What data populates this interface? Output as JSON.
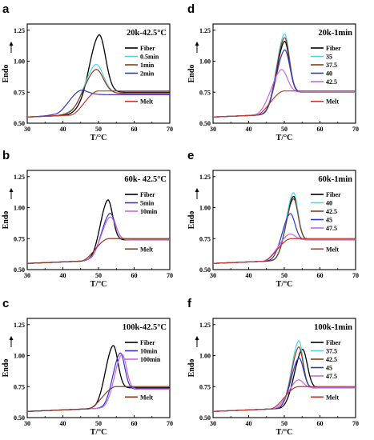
{
  "chart_data": [
    {
      "panel": "a",
      "type": "line",
      "title": "20k-42.5°C",
      "xlabel": "T/°C",
      "ylabel": "Endo",
      "xlim": [
        30,
        70
      ],
      "ylim": [
        0.5,
        1.3
      ],
      "xticks": [
        "30",
        "40",
        "50",
        "60",
        "70"
      ],
      "yticks": [
        "0.50",
        "0.75",
        "1.00",
        "1.25"
      ],
      "grid": false,
      "legend_position": "top-right",
      "series": [
        {
          "name": "Fiber",
          "color": "#000000",
          "baseline": [
            0.55,
            0.75
          ],
          "peak": {
            "x": 50.0,
            "y": 1.21
          },
          "width": 2.2,
          "onset": 45.0
        },
        {
          "name": "0.5min",
          "color": "#4fd3e8",
          "baseline": [
            0.55,
            0.74
          ],
          "peak": {
            "x": 49.0,
            "y": 0.97
          },
          "width": 2.6,
          "onset": 43.0
        },
        {
          "name": "1min",
          "color": "#8b3a1f",
          "baseline": [
            0.55,
            0.74
          ],
          "peak": {
            "x": 49.0,
            "y": 0.93
          },
          "width": 2.6,
          "onset": 42.0
        },
        {
          "name": "2min",
          "color": "#3333cc",
          "baseline": [
            0.55,
            0.73
          ],
          "peak": {
            "x": 44.0,
            "y": 0.75
          },
          "width": 3.0,
          "onset": 38.0
        },
        {
          "name": "Melt",
          "color": "#c0392b",
          "baseline": [
            0.55,
            0.76
          ],
          "peak": null,
          "onset": 42.0
        }
      ]
    },
    {
      "panel": "b",
      "type": "line",
      "title": "60k- 42.5°C",
      "xlabel": "T/°C",
      "ylabel": "Endo",
      "xlim": [
        30,
        70
      ],
      "ylim": [
        0.5,
        1.3
      ],
      "xticks": [
        "30",
        "40",
        "50",
        "60",
        "70"
      ],
      "yticks": [
        "0.50",
        "0.75",
        "1.00",
        "1.25"
      ],
      "grid": false,
      "legend_position": "top-right",
      "series": [
        {
          "name": "Fiber",
          "color": "#000000",
          "baseline": [
            0.55,
            0.74
          ],
          "peak": {
            "x": 52.5,
            "y": 1.06
          },
          "width": 1.6,
          "onset": 48.0
        },
        {
          "name": "5min",
          "color": "#3333cc",
          "baseline": [
            0.55,
            0.74
          ],
          "peak": {
            "x": 53.0,
            "y": 0.95
          },
          "width": 1.8,
          "onset": 48.0
        },
        {
          "name": "10min",
          "color": "#cc66e0",
          "baseline": [
            0.55,
            0.74
          ],
          "peak": {
            "x": 53.0,
            "y": 0.92
          },
          "width": 1.9,
          "onset": 48.0
        },
        {
          "name": "Melt",
          "color": "#8b3a1f",
          "baseline": [
            0.55,
            0.75
          ],
          "peak": null,
          "onset": 45.0
        }
      ]
    },
    {
      "panel": "c",
      "type": "line",
      "title": "100k-42.5°C",
      "xlabel": "T/°C",
      "ylabel": "Endo",
      "xlim": [
        30,
        70
      ],
      "ylim": [
        0.5,
        1.3
      ],
      "xticks": [
        "30",
        "40",
        "50",
        "60",
        "70"
      ],
      "yticks": [
        "0.50",
        "0.75",
        "1.00",
        "1.25"
      ],
      "grid": false,
      "legend_position": "top-right",
      "series": [
        {
          "name": "Fiber",
          "color": "#000000",
          "baseline": [
            0.55,
            0.74
          ],
          "peak": {
            "x": 54.0,
            "y": 1.08
          },
          "width": 1.6,
          "onset": 49.0
        },
        {
          "name": "10min",
          "color": "#3333cc",
          "baseline": [
            0.55,
            0.73
          ],
          "peak": {
            "x": 56.0,
            "y": 1.02
          },
          "width": 1.5,
          "onset": 51.0
        },
        {
          "name": "100min",
          "color": "#cc66e0",
          "baseline": [
            0.55,
            0.73
          ],
          "peak": {
            "x": 56.5,
            "y": 1.01
          },
          "width": 1.5,
          "onset": 51.0
        },
        {
          "name": "Melt",
          "color": "#8b3a1f",
          "baseline": [
            0.55,
            0.75
          ],
          "peak": null,
          "onset": 47.0
        }
      ]
    },
    {
      "panel": "d",
      "type": "line",
      "title": "20k-1min",
      "xlabel": "T/°C",
      "ylabel": "Endo",
      "xlim": [
        30,
        70
      ],
      "ylim": [
        0.5,
        1.3
      ],
      "xticks": [
        "30",
        "40",
        "50",
        "60",
        "70"
      ],
      "yticks": [
        "0.50",
        "0.75",
        "1.00",
        "1.25"
      ],
      "grid": false,
      "legend_position": "top-right",
      "series": [
        {
          "name": "Fiber",
          "color": "#000000",
          "baseline": [
            0.55,
            0.75
          ],
          "peak": {
            "x": 50.0,
            "y": 1.16
          },
          "width": 1.6,
          "onset": 44.0
        },
        {
          "name": "35",
          "color": "#4fd3e8",
          "baseline": [
            0.55,
            0.75
          ],
          "peak": {
            "x": 50.0,
            "y": 1.22
          },
          "width": 1.6,
          "onset": 44.0
        },
        {
          "name": "37.5",
          "color": "#8b3a1f",
          "baseline": [
            0.55,
            0.75
          ],
          "peak": {
            "x": 50.0,
            "y": 1.19
          },
          "width": 1.6,
          "onset": 44.0
        },
        {
          "name": "40",
          "color": "#3333cc",
          "baseline": [
            0.55,
            0.75
          ],
          "peak": {
            "x": 50.0,
            "y": 1.09
          },
          "width": 1.7,
          "onset": 44.0
        },
        {
          "name": "42.5",
          "color": "#cc66e0",
          "baseline": [
            0.55,
            0.75
          ],
          "peak": {
            "x": 49.0,
            "y": 0.93
          },
          "width": 2.0,
          "onset": 42.0
        },
        {
          "name": "Melt",
          "color": "#c0392b",
          "baseline": [
            0.55,
            0.76
          ],
          "peak": null,
          "onset": 42.0
        }
      ]
    },
    {
      "panel": "e",
      "type": "line",
      "title": "60k-1min",
      "xlabel": "T/°C",
      "ylabel": "Endo",
      "xlim": [
        30,
        70
      ],
      "ylim": [
        0.5,
        1.3
      ],
      "xticks": [
        "30",
        "40",
        "50",
        "60",
        "70"
      ],
      "yticks": [
        "0.50",
        "0.75",
        "1.00",
        "1.25"
      ],
      "grid": false,
      "legend_position": "top-right",
      "series": [
        {
          "name": "Fiber",
          "color": "#000000",
          "baseline": [
            0.55,
            0.74
          ],
          "peak": {
            "x": 52.5,
            "y": 1.09
          },
          "width": 1.5,
          "onset": 47.0
        },
        {
          "name": "40",
          "color": "#4fd3e8",
          "baseline": [
            0.55,
            0.74
          ],
          "peak": {
            "x": 52.5,
            "y": 1.12
          },
          "width": 1.5,
          "onset": 47.0
        },
        {
          "name": "42.5",
          "color": "#8b3a1f",
          "baseline": [
            0.55,
            0.74
          ],
          "peak": {
            "x": 52.5,
            "y": 1.07
          },
          "width": 1.5,
          "onset": 47.0
        },
        {
          "name": "45",
          "color": "#3333cc",
          "baseline": [
            0.55,
            0.74
          ],
          "peak": {
            "x": 51.5,
            "y": 0.95
          },
          "width": 1.6,
          "onset": 46.0
        },
        {
          "name": "47.5",
          "color": "#cc66e0",
          "baseline": [
            0.55,
            0.74
          ],
          "peak": {
            "x": 51.0,
            "y": 0.78
          },
          "width": 2.0,
          "onset": 44.0
        },
        {
          "name": "Melt",
          "color": "#c0392b",
          "baseline": [
            0.55,
            0.75
          ],
          "peak": null,
          "onset": 44.0
        }
      ]
    },
    {
      "panel": "f",
      "type": "line",
      "title": "100k-1min",
      "xlabel": "T/°C",
      "ylabel": "Endo",
      "xlim": [
        30,
        70
      ],
      "ylim": [
        0.5,
        1.3
      ],
      "xticks": [
        "30",
        "40",
        "50",
        "60",
        "70"
      ],
      "yticks": [
        "0.50",
        "0.75",
        "1.00",
        "1.25"
      ],
      "grid": false,
      "legend_position": "top-right",
      "series": [
        {
          "name": "Fiber",
          "color": "#000000",
          "baseline": [
            0.55,
            0.74
          ],
          "peak": {
            "x": 55.0,
            "y": 1.05
          },
          "width": 1.6,
          "onset": 49.0
        },
        {
          "name": "37.5",
          "color": "#4fd3e8",
          "baseline": [
            0.55,
            0.74
          ],
          "peak": {
            "x": 54.0,
            "y": 1.12
          },
          "width": 1.4,
          "onset": 48.0
        },
        {
          "name": "42.5",
          "color": "#8b3a1f",
          "baseline": [
            0.55,
            0.74
          ],
          "peak": {
            "x": 54.0,
            "y": 1.07
          },
          "width": 1.4,
          "onset": 48.0
        },
        {
          "name": "45",
          "color": "#3333cc",
          "baseline": [
            0.55,
            0.74
          ],
          "peak": {
            "x": 54.0,
            "y": 0.98
          },
          "width": 1.5,
          "onset": 48.0
        },
        {
          "name": "47.5",
          "color": "#cc66e0",
          "baseline": [
            0.55,
            0.74
          ],
          "peak": {
            "x": 53.5,
            "y": 0.8
          },
          "width": 1.8,
          "onset": 47.0
        },
        {
          "name": "Melt",
          "color": "#c0392b",
          "baseline": [
            0.55,
            0.75
          ],
          "peak": null,
          "onset": 46.0
        }
      ]
    }
  ]
}
